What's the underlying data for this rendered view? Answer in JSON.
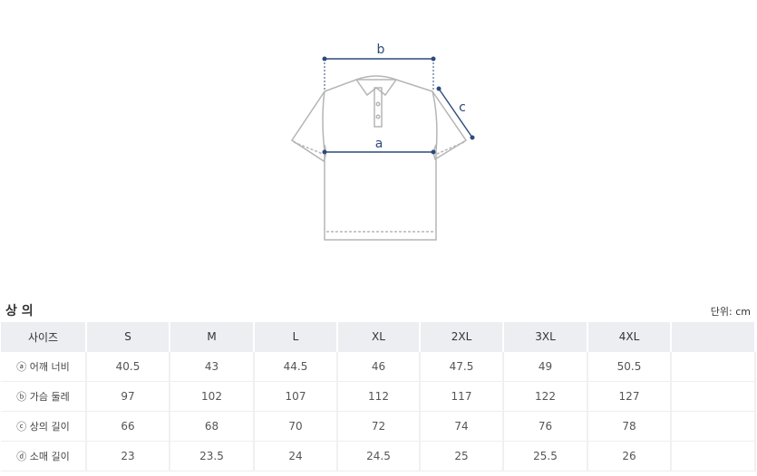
{
  "diagram": {
    "labels": {
      "a": "a",
      "b": "b",
      "c": "c"
    },
    "line_color": "#2c4a7c",
    "outline_color": "#b5b5b5"
  },
  "section_title": "상 의",
  "unit": "단위: cm",
  "table": {
    "header": [
      "사이즈",
      "S",
      "M",
      "L",
      "XL",
      "2XL",
      "3XL",
      "4XL",
      ""
    ],
    "rows": [
      [
        "ⓐ 어깨 너비",
        "40.5",
        "43",
        "44.5",
        "46",
        "47.5",
        "49",
        "50.5",
        ""
      ],
      [
        "ⓑ 가슴 둘레",
        "97",
        "102",
        "107",
        "112",
        "117",
        "122",
        "127",
        ""
      ],
      [
        "ⓒ 상의 길이",
        "66",
        "68",
        "70",
        "72",
        "74",
        "76",
        "78",
        ""
      ],
      [
        "ⓓ 소매 길이",
        "23",
        "23.5",
        "24",
        "24.5",
        "25",
        "25.5",
        "26",
        ""
      ]
    ]
  }
}
